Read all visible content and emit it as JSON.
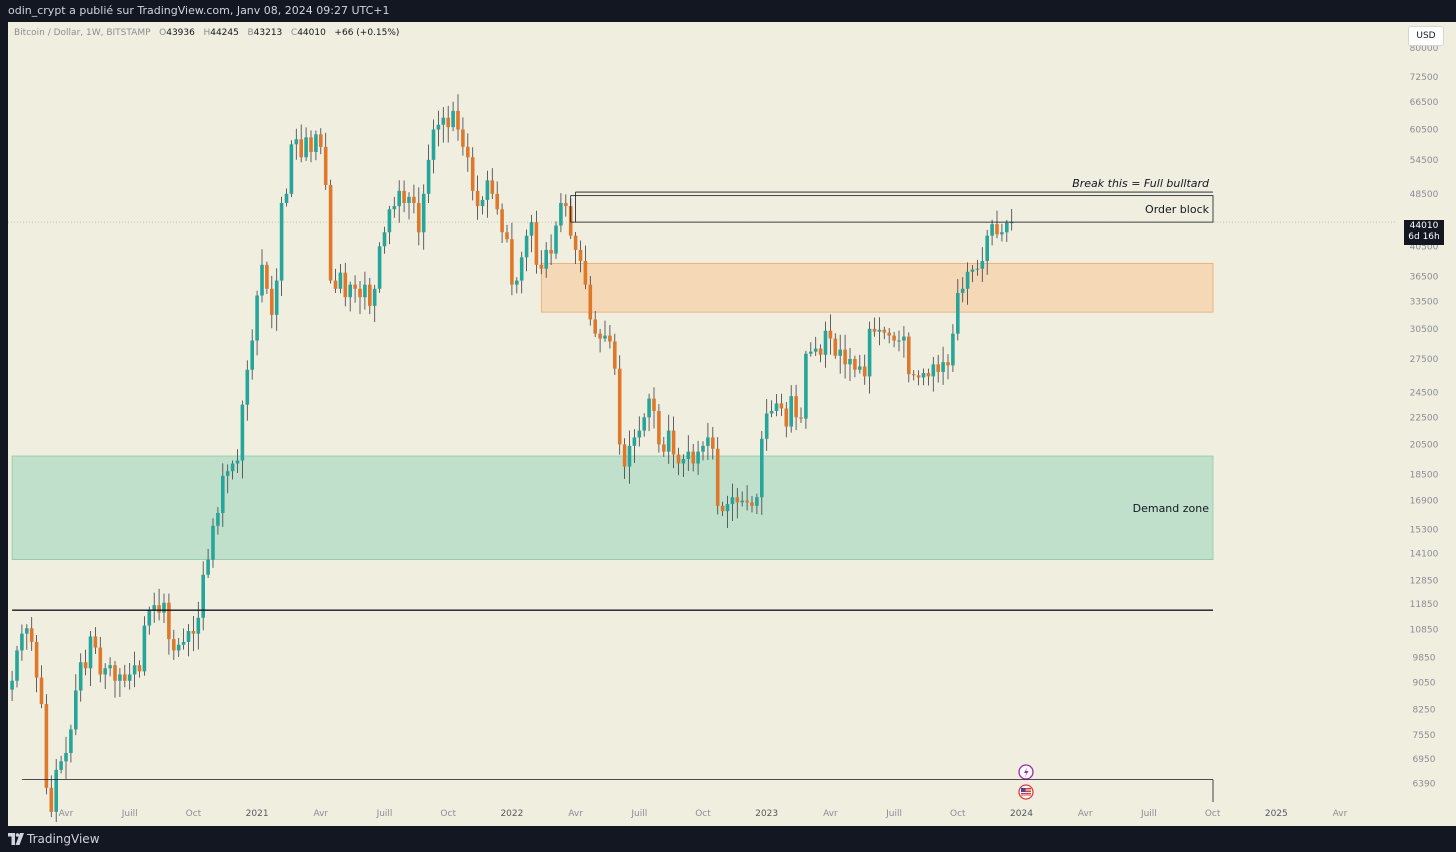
{
  "header": {
    "publisher_line": "odin_crypt a publié sur TradingView.com, Janv 08, 2024 09:27 UTC+1"
  },
  "footer": {
    "brand": "TradingView"
  },
  "legend": {
    "symbol": "Bitcoin / Dollar, 1W, BITSTAMP",
    "o_label": "O",
    "o_value": "43936",
    "h_label": "H",
    "h_value": "44245",
    "b_label": "B",
    "b_value": "43213",
    "c_label": "C",
    "c_value": "44010",
    "change": "+66 (+0.15%)"
  },
  "currency_button": "USD",
  "last_price": {
    "value": "44010",
    "countdown": "6d 16h"
  },
  "colors": {
    "background": "#f0eedf",
    "bull": "#26a69a",
    "bear": "#e0782a",
    "demand_fill": "#c1e0cc",
    "order_fill": "#f5d8b6",
    "axis_text": "#8a8d97"
  },
  "icons": {
    "lightning": "lightning-icon",
    "flag": "us-flag-icon"
  },
  "chart_data": {
    "type": "candlestick",
    "title": "Bitcoin / Dollar, 1W, BITSTAMP",
    "ylim": [
      6000,
      84000
    ],
    "y_scale": "log",
    "y_ticks": [
      80000,
      72500,
      66500,
      60500,
      54500,
      48500,
      40500,
      36500,
      33500,
      30500,
      27500,
      24500,
      22500,
      20500,
      18500,
      16900,
      15300,
      14100,
      12850,
      11850,
      10850,
      9850,
      9050,
      8250,
      7550,
      6950,
      6390
    ],
    "x_labels": [
      {
        "label": "Avr",
        "t": 0
      },
      {
        "label": "Juill",
        "t": 13
      },
      {
        "label": "Oct",
        "t": 26
      },
      {
        "label": "2021",
        "t": 39
      },
      {
        "label": "Avr",
        "t": 52
      },
      {
        "label": "Juill",
        "t": 65
      },
      {
        "label": "Oct",
        "t": 78
      },
      {
        "label": "2022",
        "t": 91
      },
      {
        "label": "Avr",
        "t": 104
      },
      {
        "label": "Juill",
        "t": 117
      },
      {
        "label": "Oct",
        "t": 130
      },
      {
        "label": "2023",
        "t": 143
      },
      {
        "label": "Avr",
        "t": 156
      },
      {
        "label": "Juill",
        "t": 169
      },
      {
        "label": "Oct",
        "t": 182
      },
      {
        "label": "2024",
        "t": 195
      },
      {
        "label": "Avr",
        "t": 208
      },
      {
        "label": "Juill",
        "t": 221
      },
      {
        "label": "Oct",
        "t": 234
      },
      {
        "label": "2025",
        "t": 247
      },
      {
        "label": "Avr",
        "t": 260
      }
    ],
    "t_start": -11,
    "closes": [
      9100,
      10100,
      10700,
      10900,
      10400,
      9200,
      8400,
      6300,
      5800,
      6700,
      6900,
      7100,
      7700,
      8800,
      9700,
      9500,
      10600,
      10200,
      9300,
      9500,
      9600,
      9100,
      9300,
      9100,
      9300,
      9600,
      9400,
      11000,
      11600,
      11800,
      11500,
      11900,
      10500,
      10100,
      10300,
      10400,
      10800,
      10700,
      11300,
      13100,
      13800,
      15500,
      16200,
      18400,
      18700,
      19200,
      19400,
      23500,
      26500,
      29300,
      34200,
      38000,
      35000,
      32000,
      36000,
      47000,
      48500,
      57500,
      58500,
      55000,
      58900,
      56000,
      59500,
      57000,
      50000,
      36000,
      35000,
      37000,
      34000,
      35500,
      35000,
      34000,
      35500,
      33000,
      35000,
      40500,
      42500,
      46000,
      46500,
      49000,
      47000,
      48000,
      47000,
      42500,
      48500,
      54500,
      60500,
      61500,
      63000,
      61000,
      64500,
      60500,
      57000,
      55000,
      49000,
      46500,
      47500,
      50800,
      48500,
      46000,
      42500,
      41500,
      35500,
      36000,
      39000,
      42000,
      44000,
      38000,
      37500,
      40000,
      39500,
      43500,
      47000,
      46500,
      42000,
      40000,
      38500,
      35500,
      31500,
      30000,
      29500,
      29800,
      29200,
      26600,
      20500,
      19000,
      20400,
      21000,
      21500,
      22500,
      24000,
      23000,
      20500,
      20000,
      21500,
      19800,
      19200,
      19500,
      20000,
      19200,
      20000,
      20400,
      21000,
      20200,
      16600,
      16300,
      16700,
      17100,
      16800,
      16900,
      16800,
      16600,
      17100,
      20900,
      22800,
      23000,
      23600,
      23200,
      21800,
      24200,
      22500,
      22400,
      28000,
      28200,
      28500,
      27900,
      30300,
      29500,
      27800,
      28400,
      27000,
      27500,
      26500,
      26800,
      25900,
      30500,
      30200,
      30400,
      30100,
      29800,
      29300,
      29300,
      29700,
      26100,
      26000,
      25800,
      26200,
      25900,
      27000,
      26300,
      27200,
      26900,
      30000,
      34500,
      35000,
      37100,
      37400,
      37500,
      38500,
      42000,
      43700,
      42200,
      42500,
      43900,
      44010
    ],
    "annotations": [
      {
        "id": "breakout_line",
        "type": "hline",
        "price": 48800,
        "from_t": 104,
        "to_t": 240,
        "label": "Break this = Full bulltard"
      },
      {
        "id": "order_block",
        "type": "zone",
        "top": 48200,
        "bottom": 44010,
        "from_t": 103,
        "to_t": 238,
        "label": "Order block"
      },
      {
        "id": "orange_zone",
        "type": "zone",
        "top": 38200,
        "bottom": 32300,
        "from_t": 97,
        "to_t": 238,
        "label": ""
      },
      {
        "id": "demand_zone",
        "type": "zone",
        "top": 19700,
        "bottom": 13800,
        "from_t": -11,
        "to_t": 238,
        "label": "Demand zone"
      },
      {
        "id": "black_line",
        "type": "hline",
        "price": 11600,
        "from_t": -11,
        "to_t": 238,
        "label": ""
      },
      {
        "id": "bottom_box",
        "type": "hline",
        "price": 6480,
        "from_t": -9,
        "to_t": 238,
        "label": ""
      }
    ]
  }
}
